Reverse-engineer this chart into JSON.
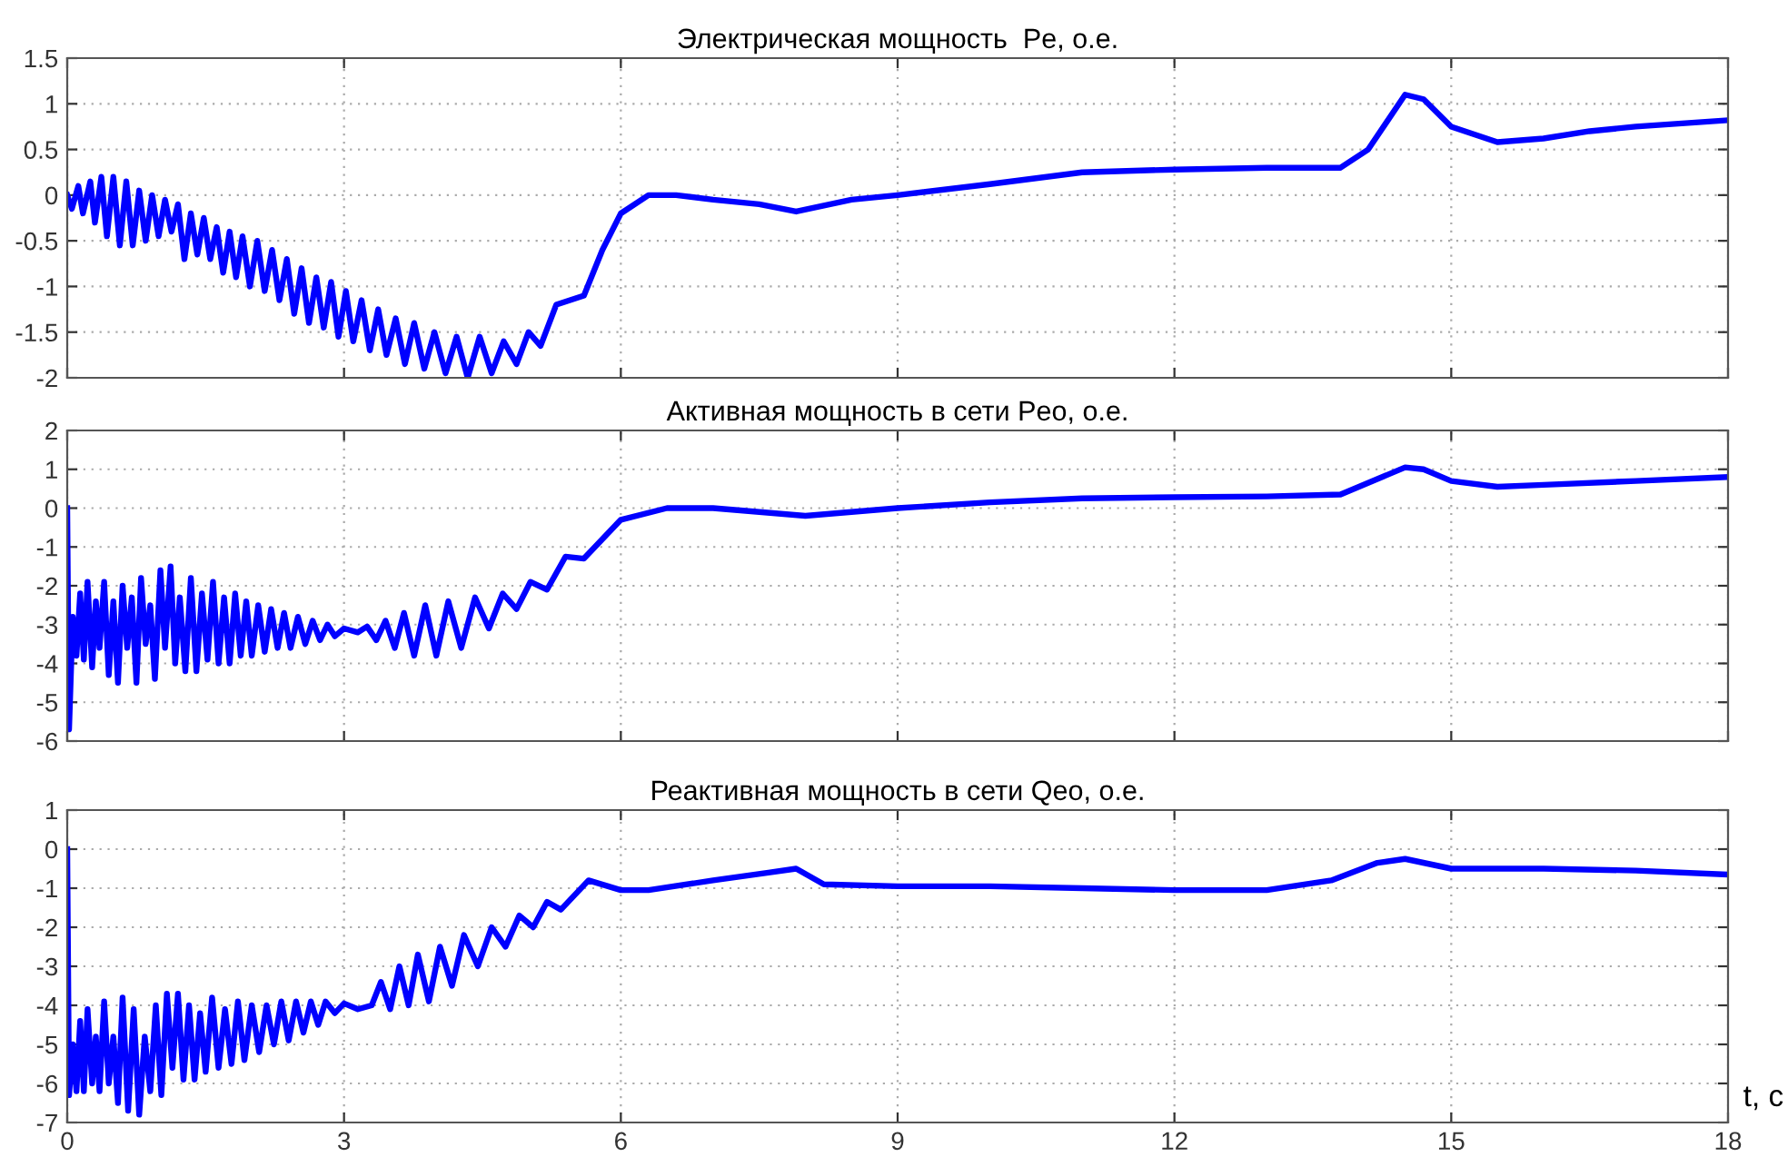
{
  "chart_data": [
    {
      "type": "line",
      "title": "Электрическая мощность  Pe, о.е.",
      "tick_labels": "y",
      "grid": true,
      "line_style": "solid",
      "xlim": [
        0,
        18
      ],
      "xticks": [
        0,
        3,
        6,
        9,
        12,
        15,
        18
      ],
      "ylim": [
        -2,
        1.5
      ],
      "yticks": [
        -2,
        -1.5,
        -1,
        -0.5,
        0,
        0.5,
        1,
        1.5
      ],
      "series": [
        {
          "color": "#0000ff",
          "x": [
            0,
            0.05,
            0.12,
            0.17,
            0.25,
            0.3,
            0.37,
            0.43,
            0.5,
            0.57,
            0.64,
            0.71,
            0.78,
            0.85,
            0.92,
            0.99,
            1.06,
            1.13,
            1.2,
            1.27,
            1.34,
            1.41,
            1.48,
            1.55,
            1.62,
            1.69,
            1.76,
            1.83,
            1.9,
            1.98,
            2.06,
            2.14,
            2.22,
            2.3,
            2.38,
            2.46,
            2.54,
            2.62,
            2.7,
            2.78,
            2.86,
            2.94,
            3.02,
            3.1,
            3.19,
            3.28,
            3.37,
            3.46,
            3.56,
            3.66,
            3.76,
            3.87,
            3.98,
            4.1,
            4.22,
            4.34,
            4.47,
            4.6,
            4.73,
            4.87,
            5.0,
            5.13,
            5.3,
            5.45,
            5.6,
            5.8,
            6.0,
            6.3,
            6.6,
            7.0,
            7.5,
            7.9,
            8.5,
            9,
            10,
            11,
            12,
            13,
            13.8,
            14.1,
            14.5,
            14.7,
            15.0,
            15.5,
            16,
            16.5,
            17,
            18
          ],
          "values": [
            0,
            -0.15,
            0.1,
            -0.2,
            0.15,
            -0.3,
            0.2,
            -0.45,
            0.2,
            -0.55,
            0.15,
            -0.55,
            0.05,
            -0.5,
            0,
            -0.45,
            -0.05,
            -0.4,
            -0.1,
            -0.7,
            -0.2,
            -0.65,
            -0.25,
            -0.7,
            -0.35,
            -0.85,
            -0.4,
            -0.9,
            -0.45,
            -1,
            -0.5,
            -1.05,
            -0.6,
            -1.15,
            -0.7,
            -1.3,
            -0.8,
            -1.4,
            -0.9,
            -1.45,
            -0.95,
            -1.55,
            -1.05,
            -1.6,
            -1.15,
            -1.7,
            -1.25,
            -1.75,
            -1.35,
            -1.85,
            -1.4,
            -1.9,
            -1.5,
            -1.95,
            -1.55,
            -2.0,
            -1.55,
            -1.95,
            -1.6,
            -1.85,
            -1.5,
            -1.65,
            -1.2,
            -1.15,
            -1.1,
            -0.6,
            -0.2,
            0,
            0.0,
            -0.05,
            -0.1,
            -0.18,
            -0.05,
            0.0,
            0.12,
            0.25,
            0.28,
            0.3,
            0.3,
            0.5,
            1.1,
            1.05,
            0.75,
            0.58,
            0.62,
            0.7,
            0.75,
            0.82
          ]
        }
      ]
    },
    {
      "type": "line",
      "title": "Активная мощность в сети Peo, о.е.",
      "tick_labels": "y",
      "grid": true,
      "line_style": "solid",
      "xlim": [
        0,
        18
      ],
      "xticks": [
        0,
        3,
        6,
        9,
        12,
        15,
        18
      ],
      "ylim": [
        -6,
        2
      ],
      "yticks": [
        -6,
        -5,
        -4,
        -3,
        -2,
        -1,
        0,
        1,
        2
      ],
      "series": [
        {
          "color": "#0000ff",
          "x": [
            0,
            0.02,
            0.06,
            0.1,
            0.14,
            0.18,
            0.22,
            0.27,
            0.31,
            0.35,
            0.4,
            0.45,
            0.5,
            0.55,
            0.6,
            0.65,
            0.7,
            0.75,
            0.8,
            0.85,
            0.9,
            0.95,
            1.01,
            1.06,
            1.12,
            1.17,
            1.22,
            1.28,
            1.34,
            1.4,
            1.46,
            1.52,
            1.58,
            1.64,
            1.7,
            1.76,
            1.82,
            1.88,
            1.94,
            2.0,
            2.07,
            2.14,
            2.21,
            2.28,
            2.35,
            2.42,
            2.5,
            2.58,
            2.66,
            2.74,
            2.82,
            2.9,
            3.0,
            3.15,
            3.25,
            3.35,
            3.45,
            3.55,
            3.65,
            3.76,
            3.88,
            4.0,
            4.13,
            4.27,
            4.42,
            4.57,
            4.72,
            4.87,
            5.02,
            5.2,
            5.4,
            5.6,
            6.0,
            6.5,
            7,
            7.5,
            8,
            9,
            10,
            11,
            12,
            13,
            13.8,
            14.5,
            14.7,
            15,
            15.5,
            16,
            17,
            18
          ],
          "values": [
            0,
            -5.7,
            -2.8,
            -3.8,
            -2.2,
            -3.9,
            -1.9,
            -4.1,
            -2.4,
            -3.6,
            -1.9,
            -4.3,
            -2.4,
            -4.5,
            -2,
            -3.6,
            -2.3,
            -4.5,
            -1.8,
            -3.5,
            -2.5,
            -4.4,
            -1.6,
            -3.6,
            -1.5,
            -4.0,
            -2.3,
            -4.2,
            -1.8,
            -4.2,
            -2.2,
            -3.9,
            -1.9,
            -4.0,
            -2.3,
            -4.0,
            -2.2,
            -3.8,
            -2.4,
            -3.8,
            -2.5,
            -3.7,
            -2.6,
            -3.6,
            -2.7,
            -3.6,
            -2.8,
            -3.5,
            -2.9,
            -3.4,
            -3.0,
            -3.3,
            -3.1,
            -3.2,
            -3.05,
            -3.4,
            -2.9,
            -3.6,
            -2.7,
            -3.8,
            -2.5,
            -3.8,
            -2.4,
            -3.6,
            -2.3,
            -3.1,
            -2.2,
            -2.6,
            -1.9,
            -2.1,
            -1.25,
            -1.3,
            -0.3,
            0,
            0,
            -0.1,
            -0.2,
            0,
            0.15,
            0.25,
            0.28,
            0.3,
            0.35,
            1.05,
            1.0,
            0.7,
            0.55,
            0.6,
            0.7,
            0.8
          ]
        }
      ]
    },
    {
      "type": "line",
      "title": "Реактивная мощность в сети Qeo, о.е.",
      "xlabel": "t, c",
      "grid": true,
      "line_style": "solid",
      "xlim": [
        0,
        18
      ],
      "xticks": [
        0,
        3,
        6,
        9,
        12,
        15,
        18
      ],
      "ylim": [
        -7,
        1
      ],
      "yticks": [
        -7,
        -6,
        -5,
        -4,
        -3,
        -2,
        -1,
        0,
        1
      ],
      "series": [
        {
          "color": "#0000ff",
          "x": [
            0,
            0.02,
            0.06,
            0.1,
            0.14,
            0.18,
            0.22,
            0.27,
            0.31,
            0.35,
            0.4,
            0.45,
            0.5,
            0.55,
            0.6,
            0.66,
            0.72,
            0.78,
            0.84,
            0.9,
            0.96,
            1.02,
            1.08,
            1.14,
            1.2,
            1.26,
            1.32,
            1.38,
            1.44,
            1.5,
            1.57,
            1.64,
            1.71,
            1.78,
            1.85,
            1.92,
            2.0,
            2.08,
            2.16,
            2.24,
            2.32,
            2.4,
            2.48,
            2.56,
            2.64,
            2.72,
            2.8,
            2.9,
            3.0,
            3.15,
            3.3,
            3.4,
            3.5,
            3.6,
            3.7,
            3.8,
            3.92,
            4.04,
            4.17,
            4.3,
            4.45,
            4.6,
            4.75,
            4.9,
            5.05,
            5.2,
            5.35,
            5.65,
            6.0,
            6.3,
            7,
            7.6,
            7.9,
            8.2,
            9,
            10,
            11,
            12,
            13,
            13.7,
            14.2,
            14.5,
            15,
            15.5,
            16,
            17,
            18
          ],
          "values": [
            0,
            -6.3,
            -5,
            -6.2,
            -4.4,
            -6.2,
            -4.1,
            -6.0,
            -4.8,
            -6.2,
            -3.9,
            -6.0,
            -4.8,
            -6.5,
            -3.8,
            -6.7,
            -4.1,
            -6.8,
            -4.8,
            -6.2,
            -4.0,
            -6.3,
            -3.7,
            -5.6,
            -3.7,
            -5.9,
            -4.0,
            -5.9,
            -4.2,
            -5.7,
            -3.8,
            -5.6,
            -4.1,
            -5.5,
            -3.9,
            -5.4,
            -4.0,
            -5.2,
            -4.0,
            -5.0,
            -3.9,
            -4.9,
            -3.9,
            -4.7,
            -3.9,
            -4.5,
            -3.9,
            -4.2,
            -3.95,
            -4.1,
            -4.0,
            -3.4,
            -4.1,
            -3.0,
            -4.0,
            -2.7,
            -3.9,
            -2.5,
            -3.5,
            -2.2,
            -3.0,
            -2.0,
            -2.5,
            -1.7,
            -2.0,
            -1.35,
            -1.55,
            -0.8,
            -1.05,
            -1.05,
            -0.8,
            -0.6,
            -0.5,
            -0.9,
            -0.95,
            -0.95,
            -1.0,
            -1.05,
            -1.05,
            -0.8,
            -0.35,
            -0.25,
            -0.5,
            -0.5,
            -0.5,
            -0.55,
            -0.65
          ]
        }
      ]
    }
  ]
}
